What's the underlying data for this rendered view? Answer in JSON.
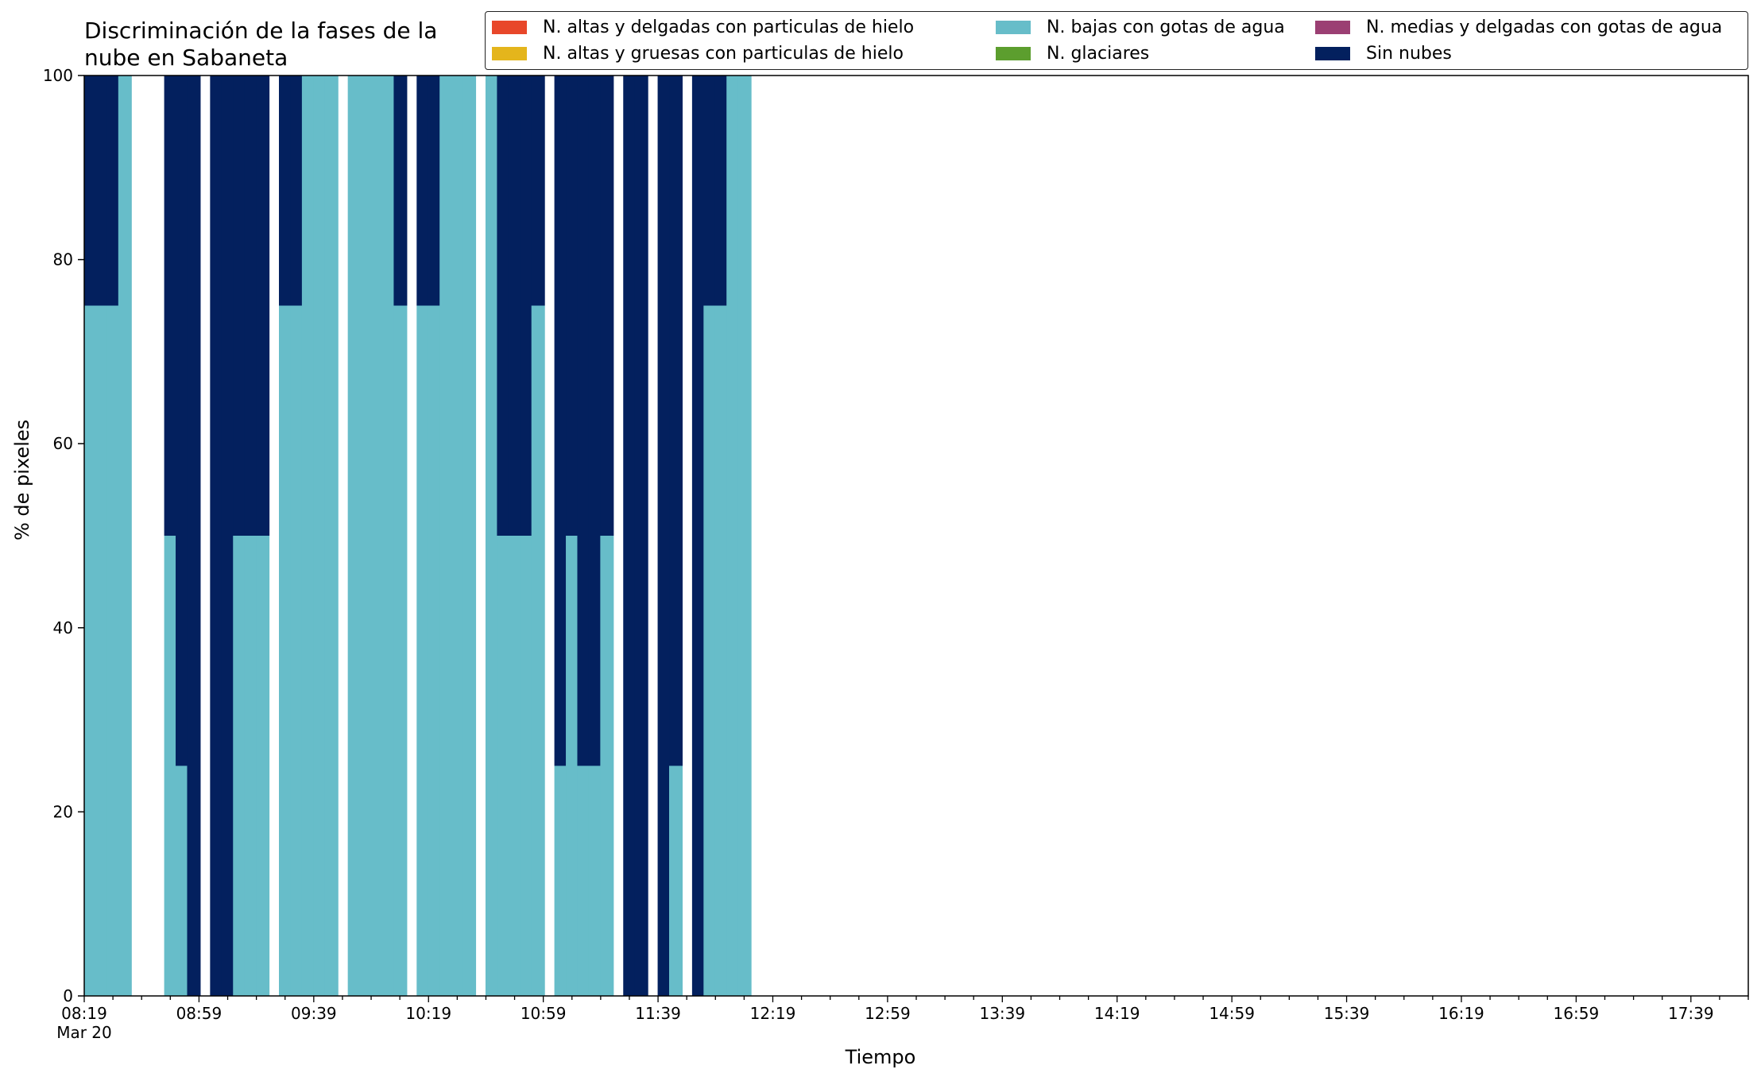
{
  "chart_data": {
    "type": "bar",
    "stacked": true,
    "title": "Discriminación de la fases de la nube en Sabaneta",
    "title_lines": [
      "Discriminación de la fases de la",
      "nube en Sabaneta"
    ],
    "xlabel": "Tiempo",
    "ylabel": "% de pixeles",
    "ylim": [
      0,
      100
    ],
    "yticks": [
      0,
      20,
      40,
      60,
      80,
      100
    ],
    "x_tick_labels": [
      "08:19",
      "08:59",
      "09:39",
      "10:19",
      "10:59",
      "11:39",
      "12:19",
      "12:59",
      "13:39",
      "14:19",
      "14:59",
      "15:39",
      "16:19",
      "16:59",
      "17:39"
    ],
    "x_date_label": "Mar 20",
    "x_start": "08:19",
    "x_end": "17:59",
    "grid": false,
    "legend_position": "top-right",
    "series": [
      {
        "name": "N. altas y delgadas con particulas de hielo",
        "color": "#e8472a"
      },
      {
        "name": "N. altas y gruesas con particulas de hielo",
        "color": "#e4b51c"
      },
      {
        "name": "N. bajas con gotas de agua",
        "color": "#67bdc9"
      },
      {
        "name": "N. glaciares",
        "color": "#5c9e2e"
      },
      {
        "name": "N. medias y delgadas con gotas de agua",
        "color": "#9b3f73"
      },
      {
        "name": "Sin nubes",
        "color": "#03205e"
      }
    ],
    "bars": [
      {
        "time": "08:19",
        "bajas": 75,
        "sin_nubes": 25
      },
      {
        "time": "08:23",
        "bajas": 75,
        "sin_nubes": 25
      },
      {
        "time": "08:27",
        "bajas": 75,
        "sin_nubes": 25
      },
      {
        "time": "08:31",
        "bajas": 100,
        "sin_nubes": 0
      },
      {
        "time": "08:47",
        "bajas": 50,
        "sin_nubes": 50
      },
      {
        "time": "08:51",
        "bajas": 25,
        "sin_nubes": 75
      },
      {
        "time": "08:55",
        "bajas": 0,
        "sin_nubes": 100
      },
      {
        "time": "09:03",
        "bajas": 0,
        "sin_nubes": 100
      },
      {
        "time": "09:07",
        "bajas": 0,
        "sin_nubes": 100
      },
      {
        "time": "09:11",
        "bajas": 50,
        "sin_nubes": 50
      },
      {
        "time": "09:15",
        "bajas": 50,
        "sin_nubes": 50
      },
      {
        "time": "09:19",
        "bajas": 50,
        "sin_nubes": 50
      },
      {
        "time": "09:27",
        "bajas": 75,
        "sin_nubes": 25
      },
      {
        "time": "09:31",
        "bajas": 75,
        "sin_nubes": 25
      },
      {
        "time": "09:35",
        "bajas": 100,
        "sin_nubes": 0
      },
      {
        "time": "09:39",
        "bajas": 100,
        "sin_nubes": 0
      },
      {
        "time": "09:43",
        "bajas": 100,
        "sin_nubes": 0
      },
      {
        "time": "09:51",
        "bajas": 100,
        "sin_nubes": 0
      },
      {
        "time": "09:55",
        "bajas": 100,
        "sin_nubes": 0
      },
      {
        "time": "09:59",
        "bajas": 100,
        "sin_nubes": 0
      },
      {
        "time": "10:03",
        "bajas": 100,
        "sin_nubes": 0
      },
      {
        "time": "10:07",
        "bajas": 75,
        "sin_nubes": 25
      },
      {
        "time": "10:15",
        "bajas": 75,
        "sin_nubes": 25
      },
      {
        "time": "10:19",
        "bajas": 75,
        "sin_nubes": 25
      },
      {
        "time": "10:23",
        "bajas": 100,
        "sin_nubes": 0
      },
      {
        "time": "10:27",
        "bajas": 100,
        "sin_nubes": 0
      },
      {
        "time": "10:31",
        "bajas": 100,
        "sin_nubes": 0
      },
      {
        "time": "10:39",
        "bajas": 100,
        "sin_nubes": 0
      },
      {
        "time": "10:43",
        "bajas": 50,
        "sin_nubes": 50
      },
      {
        "time": "10:47",
        "bajas": 50,
        "sin_nubes": 50
      },
      {
        "time": "10:51",
        "bajas": 50,
        "sin_nubes": 50
      },
      {
        "time": "10:55",
        "bajas": 75,
        "sin_nubes": 25
      },
      {
        "time": "11:03",
        "bajas": 25,
        "sin_nubes": 75
      },
      {
        "time": "11:07",
        "bajas": 50,
        "sin_nubes": 50
      },
      {
        "time": "11:11",
        "bajas": 25,
        "sin_nubes": 75
      },
      {
        "time": "11:15",
        "bajas": 25,
        "sin_nubes": 75
      },
      {
        "time": "11:19",
        "bajas": 50,
        "sin_nubes": 50
      },
      {
        "time": "11:27",
        "bajas": 0,
        "sin_nubes": 100
      },
      {
        "time": "11:31",
        "bajas": 0,
        "sin_nubes": 100
      },
      {
        "time": "11:39",
        "bajas": 0,
        "sin_nubes": 100
      },
      {
        "time": "11:43",
        "bajas": 25,
        "sin_nubes": 75
      },
      {
        "time": "11:51",
        "bajas": 0,
        "sin_nubes": 100
      },
      {
        "time": "11:55",
        "bajas": 75,
        "sin_nubes": 25
      },
      {
        "time": "11:59",
        "bajas": 75,
        "sin_nubes": 25
      },
      {
        "time": "12:03",
        "bajas": 100,
        "sin_nubes": 0
      },
      {
        "time": "12:07",
        "bajas": 100,
        "sin_nubes": 0
      }
    ]
  },
  "axis": {
    "y_tick_labels": [
      "0",
      "20",
      "40",
      "60",
      "80",
      "100"
    ]
  }
}
